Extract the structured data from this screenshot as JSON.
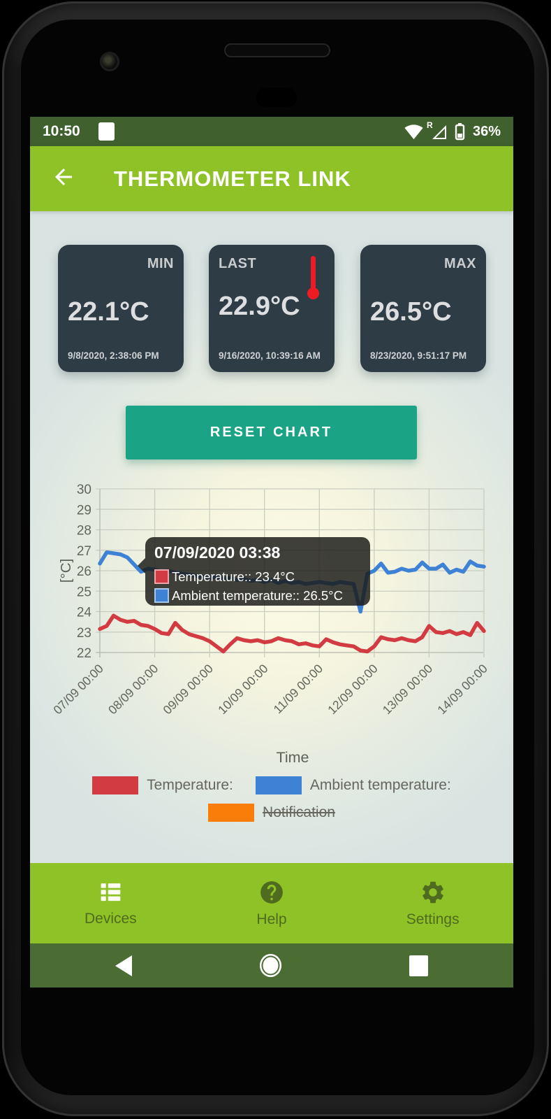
{
  "status_bar": {
    "time": "10:50",
    "roaming_indicator": "R",
    "battery": "36%"
  },
  "header": {
    "title": "THERMOMETER LINK"
  },
  "cards": {
    "min": {
      "label": "MIN",
      "value": "22.1°C",
      "timestamp": "9/8/2020, 2:38:06 PM"
    },
    "last": {
      "label": "LAST",
      "value": "22.9°C",
      "timestamp": "9/16/2020, 10:39:16 AM"
    },
    "max": {
      "label": "MAX",
      "value": "26.5°C",
      "timestamp": "8/23/2020, 9:51:17 PM"
    }
  },
  "reset_button": {
    "label": "RESET CHART"
  },
  "tooltip": {
    "title": "07/09/2020 03:38",
    "rows": [
      {
        "label": "Temperature:: 23.4°C",
        "color": "#d23b41"
      },
      {
        "label": "Ambient temperature:: 26.5°C",
        "color": "#3d82d4"
      }
    ]
  },
  "chart_data": {
    "type": "line",
    "title": "",
    "xlabel": "Time",
    "ylabel": "[°C]",
    "ylim": [
      22,
      30
    ],
    "y_ticks": [
      22,
      23,
      24,
      25,
      26,
      27,
      28,
      29,
      30
    ],
    "x_tick_labels": [
      "07/09 00:00",
      "08/09 00:00",
      "09/09 00:00",
      "10/09 00:00",
      "11/09 00:00",
      "12/09 00:00",
      "13/09 00:00",
      "14/09 00:00"
    ],
    "x_span_hours": 168,
    "x_step_hours": 3,
    "grid": true,
    "legend_position": "bottom",
    "series": [
      {
        "name": "Temperature:",
        "color": "#d23b41",
        "values": [
          23.15,
          23.3,
          23.8,
          23.6,
          23.5,
          23.55,
          23.35,
          23.3,
          23.15,
          22.95,
          22.9,
          23.45,
          23.1,
          22.9,
          22.8,
          22.7,
          22.55,
          22.3,
          22.05,
          22.4,
          22.7,
          22.6,
          22.55,
          22.6,
          22.5,
          22.55,
          22.7,
          22.6,
          22.55,
          22.4,
          22.45,
          22.35,
          22.3,
          22.65,
          22.5,
          22.4,
          22.35,
          22.3,
          22.1,
          22.05,
          22.3,
          22.75,
          22.65,
          22.6,
          22.7,
          22.6,
          22.55,
          22.75,
          23.3,
          23.0,
          22.95,
          23.05,
          22.9,
          23.0,
          22.85,
          23.45,
          23.05
        ]
      },
      {
        "name": "Ambient temperature:",
        "color": "#3d82d4",
        "values": [
          26.35,
          26.9,
          26.85,
          26.8,
          26.65,
          26.3,
          25.95,
          26.1,
          26.05,
          25.95,
          26.0,
          25.9,
          25.85,
          25.8,
          25.75,
          25.7,
          25.65,
          25.7,
          25.6,
          25.65,
          25.55,
          25.6,
          25.5,
          25.55,
          25.45,
          25.55,
          25.4,
          25.5,
          25.4,
          25.45,
          25.35,
          25.4,
          25.45,
          25.4,
          25.35,
          25.45,
          25.4,
          25.35,
          24.0,
          25.85,
          26.0,
          26.35,
          25.9,
          25.95,
          26.1,
          26.0,
          26.05,
          26.4,
          26.1,
          26.1,
          26.3,
          25.9,
          26.05,
          25.95,
          26.45,
          26.25,
          26.2
        ]
      }
    ],
    "legend": [
      {
        "label": "Temperature:",
        "color": "#d23b41",
        "disabled": false
      },
      {
        "label": "Ambient temperature:",
        "color": "#3d82d4",
        "disabled": false
      },
      {
        "label": "Notification",
        "color": "#fb7d09",
        "disabled": true
      }
    ]
  },
  "bottom_nav": {
    "items": [
      {
        "label": "Devices",
        "icon": "list-icon",
        "active": true
      },
      {
        "label": "Help",
        "icon": "help-icon",
        "active": false
      },
      {
        "label": "Settings",
        "icon": "gear-icon",
        "active": false
      }
    ]
  },
  "colors": {
    "header_green": "#8fc226",
    "status_bar_green": "#40612d",
    "android_nav_green": "#4b6d34",
    "card_bg": "#2e3c46",
    "reset_button_teal": "#1ba385",
    "temperature_red": "#d23b41",
    "ambient_blue": "#3d82d4",
    "notification_orange": "#fb7d09"
  }
}
